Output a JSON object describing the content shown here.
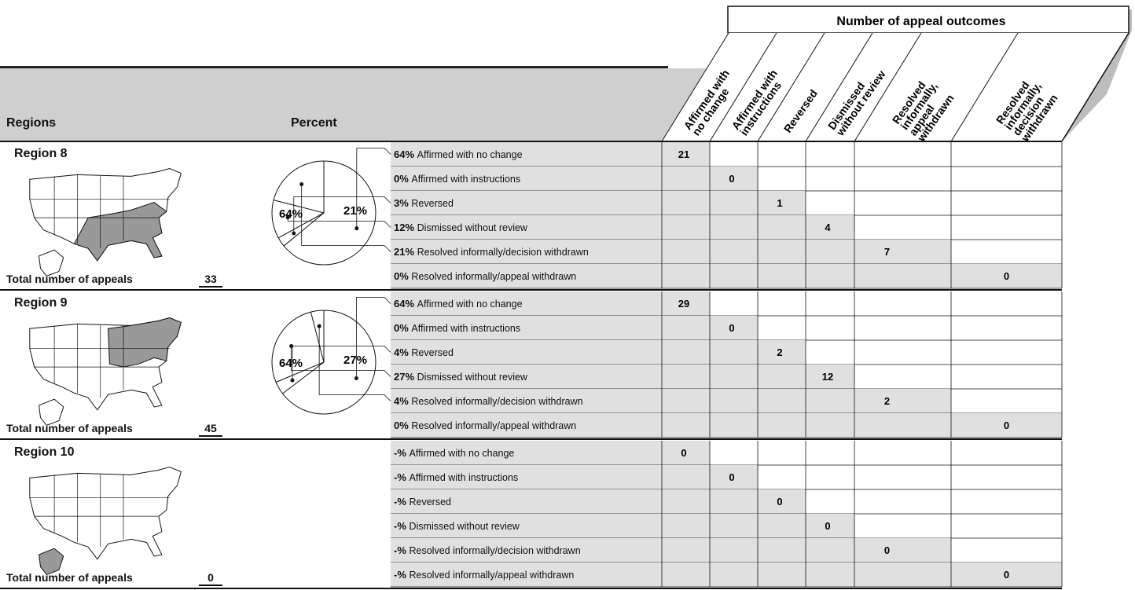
{
  "header": {
    "regions_label": "Regions",
    "percent_label": "Percent",
    "outcomes_title": "Number of appeal outcomes",
    "columns": [
      [
        "Affirmed with",
        "no change"
      ],
      [
        "Affirmed with",
        "instructions"
      ],
      [
        "Reversed"
      ],
      [
        "Dismissed",
        "without review"
      ],
      [
        "Resolved",
        "informally,",
        "appeal",
        "withdrawn"
      ],
      [
        "Resolved",
        "informally,",
        "decision",
        "withdrawn"
      ]
    ]
  },
  "regions": [
    {
      "name": "Region 8",
      "total_label": "Total number of appeals",
      "total": "33",
      "rows": [
        {
          "pct": "64%",
          "label": "Affirmed with no change",
          "value": "21"
        },
        {
          "pct": "0%",
          "label": "Affirmed with instructions",
          "value": "0"
        },
        {
          "pct": "3%",
          "label": "Reversed",
          "value": "1"
        },
        {
          "pct": "12%",
          "label": "Dismissed without review",
          "value": "4"
        },
        {
          "pct": "21%",
          "label": "Resolved informally/decision withdrawn",
          "value": "7"
        },
        {
          "pct": "0%",
          "label": "Resolved informally/appeal withdrawn",
          "value": "0"
        }
      ],
      "pie_labels": [
        "64%",
        "21%"
      ]
    },
    {
      "name": "Region 9",
      "total_label": "Total number of appeals",
      "total": "45",
      "rows": [
        {
          "pct": "64%",
          "label": "Affirmed with no change",
          "value": "29"
        },
        {
          "pct": "0%",
          "label": "Affirmed with instructions",
          "value": "0"
        },
        {
          "pct": "4%",
          "label": "Reversed",
          "value": "2"
        },
        {
          "pct": "27%",
          "label": "Dismissed without review",
          "value": "12"
        },
        {
          "pct": "4%",
          "label": "Resolved informally/decision withdrawn",
          "value": "2"
        },
        {
          "pct": "0%",
          "label": "Resolved informally/appeal withdrawn",
          "value": "0"
        }
      ],
      "pie_labels": [
        "64%",
        "27%"
      ]
    },
    {
      "name": "Region 10",
      "total_label": "Total number of appeals",
      "total": "0",
      "rows": [
        {
          "pct": "-%",
          "label": "Affirmed with no change",
          "value": "0"
        },
        {
          "pct": "-%",
          "label": "Affirmed with instructions",
          "value": "0"
        },
        {
          "pct": "-%",
          "label": "Reversed",
          "value": "0"
        },
        {
          "pct": "-%",
          "label": "Dismissed without review",
          "value": "0"
        },
        {
          "pct": "-%",
          "label": "Resolved informally/decision withdrawn",
          "value": "0"
        },
        {
          "pct": "-%",
          "label": "Resolved informally/appeal withdrawn",
          "value": "0"
        }
      ],
      "pie_labels": []
    }
  ],
  "chart_data": [
    {
      "type": "pie",
      "title": "Region 8",
      "categories": [
        "Affirmed with no change",
        "Affirmed with instructions",
        "Reversed",
        "Dismissed without review",
        "Resolved informally/decision withdrawn",
        "Resolved informally/appeal withdrawn"
      ],
      "values": [
        64,
        0,
        3,
        12,
        21,
        0
      ],
      "counts": [
        21,
        0,
        1,
        4,
        7,
        0
      ],
      "total": 33
    },
    {
      "type": "pie",
      "title": "Region 9",
      "categories": [
        "Affirmed with no change",
        "Affirmed with instructions",
        "Reversed",
        "Dismissed without review",
        "Resolved informally/decision withdrawn",
        "Resolved informally/appeal withdrawn"
      ],
      "values": [
        64,
        0,
        4,
        27,
        4,
        0
      ],
      "counts": [
        29,
        0,
        2,
        12,
        2,
        0
      ],
      "total": 45
    },
    {
      "type": "table",
      "title": "Region 10",
      "categories": [
        "Affirmed with no change",
        "Affirmed with instructions",
        "Reversed",
        "Dismissed without review",
        "Resolved informally/decision withdrawn",
        "Resolved informally/appeal withdrawn"
      ],
      "values": [
        null,
        null,
        null,
        null,
        null,
        null
      ],
      "counts": [
        0,
        0,
        0,
        0,
        0,
        0
      ],
      "total": 0
    }
  ],
  "colors": {
    "band_gray": "#cfcfcf",
    "highlight_gray": "#999999",
    "line": "#111111"
  }
}
